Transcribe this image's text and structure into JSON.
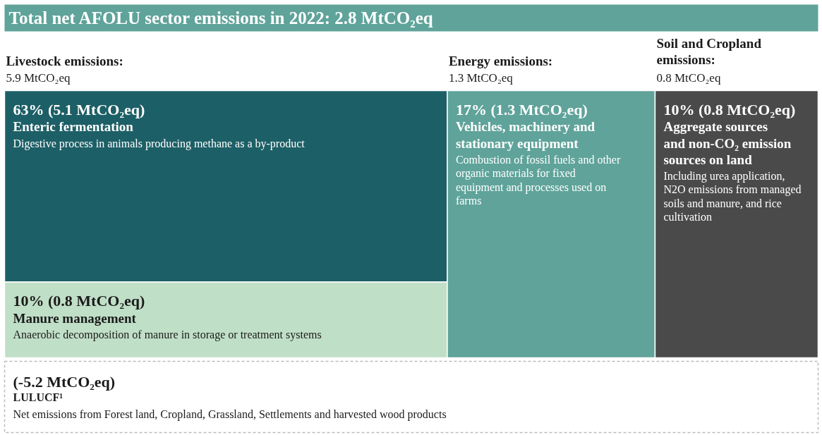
{
  "chart_data": {
    "type": "other",
    "title": "Total net AFOLU sector emissions in 2022: 2.8 MtCO₂eq",
    "categories": [
      "Enteric fermentation",
      "Manure management",
      "Vehicles, machinery and stationary equipment",
      "Aggregate sources and non-CO₂ emission sources on land",
      "LULUCF¹"
    ],
    "values": [
      5.1,
      0.8,
      1.3,
      0.8,
      -5.2
    ],
    "value_labels": [
      "63% (5.1 MtCO₂eq)",
      "10% (0.8 MtCO₂eq)",
      "17% (1.3 MtCO₂eq)",
      "10% (0.8 MtCO₂eq)",
      "(-5.2 MtCO₂eq)"
    ],
    "colors": [
      "#1d5f66",
      "#c0dfc7",
      "#5fa39a",
      "#4a4a4a",
      "#ffffff"
    ],
    "annotations": [
      "Livestock emissions:",
      "5.9 MtCO₂eq",
      "Energy emissions:",
      "1.3 MtCO₂eq",
      "Soil and Cropland emissions:",
      "0.8 MtCO₂eq",
      "Digestive process in animals producing methane as a by-product",
      "Anaerobic decomposition of manure in storage or treatment systems",
      "Combustion of fossil fuels and other organic materials for fixed equipment and processes used on farms",
      "Including urea application, N2O emissions from managed soils and manure, and rice cultivation",
      "Net emissions from Forest land, Cropland, Grassland, Settlements and harvested wood products"
    ]
  }
}
